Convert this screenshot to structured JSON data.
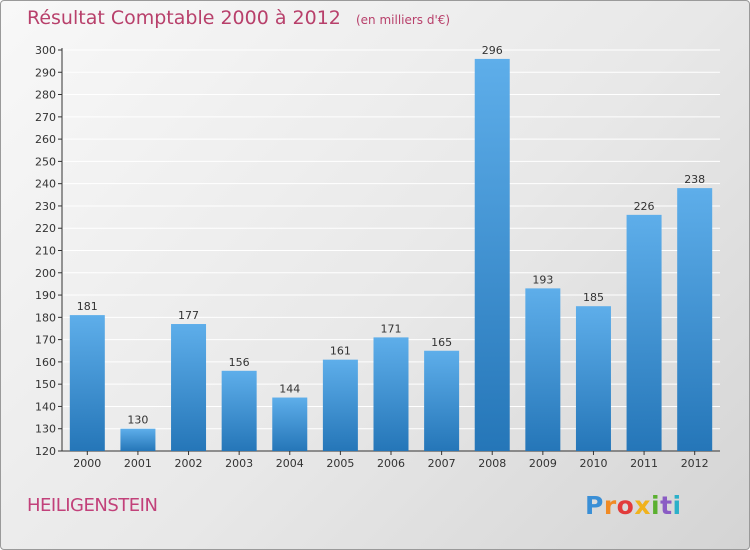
{
  "title": "Résultat Comptable 2000 à 2012",
  "subtitle": "(en milliers d'€)",
  "commune": "HEILIGENSTEIN",
  "logo_text": "Proxiti",
  "colors": {
    "title": "#b8406b",
    "bar_top": "#5eaeea",
    "bar_bottom": "#2576b8",
    "grid": "#ffffff",
    "axis": "#333333",
    "logo": [
      "#3a8fd6",
      "#f08a24",
      "#e23b3b",
      "#f0b21c",
      "#5bb030",
      "#8a5cc4",
      "#2bb0c9"
    ]
  },
  "chart_data": {
    "type": "bar",
    "categories": [
      "2000",
      "2001",
      "2002",
      "2003",
      "2004",
      "2005",
      "2006",
      "2007",
      "2008",
      "2009",
      "2010",
      "2011",
      "2012"
    ],
    "values": [
      181,
      130,
      177,
      156,
      144,
      161,
      171,
      165,
      296,
      193,
      185,
      226,
      238
    ],
    "ylim": [
      120,
      300
    ],
    "yticks": [
      120,
      130,
      140,
      150,
      160,
      170,
      180,
      190,
      200,
      210,
      220,
      230,
      240,
      250,
      260,
      270,
      280,
      290,
      300
    ],
    "grid": true,
    "data_labels": true
  }
}
